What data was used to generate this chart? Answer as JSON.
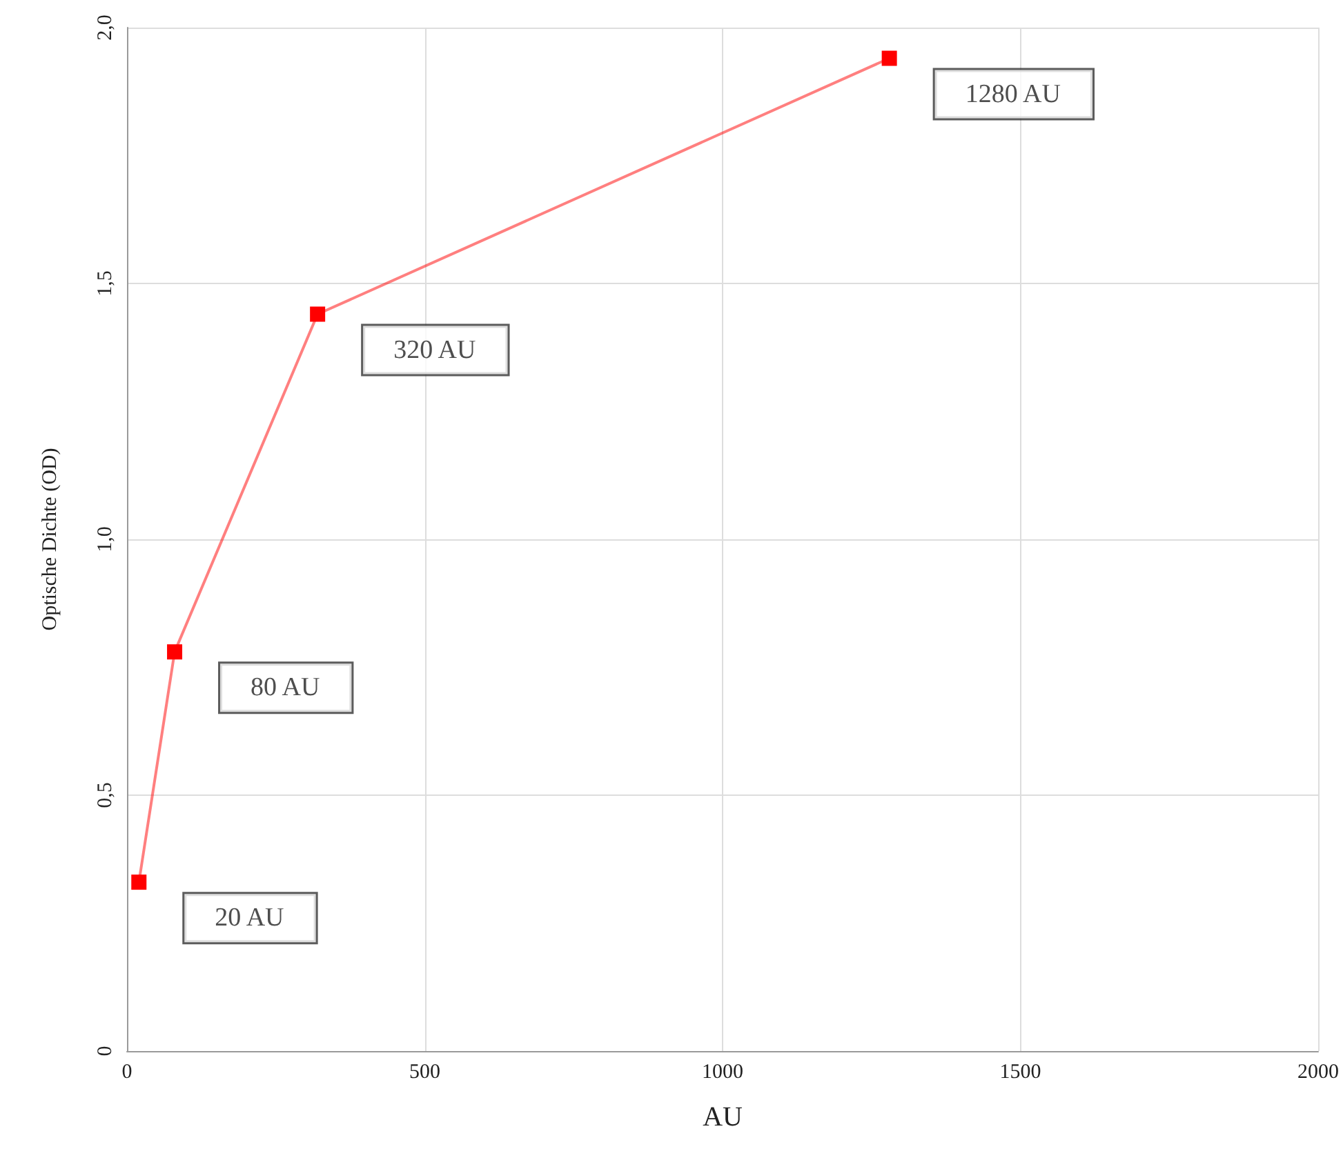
{
  "chart_data": {
    "type": "line",
    "xlabel": "AU",
    "ylabel": "Optische Dichte (OD)",
    "x": [
      20,
      80,
      320,
      1280
    ],
    "series": [
      {
        "color": "#ff0000",
        "values": [
          0.33,
          0.78,
          1.44,
          1.94
        ]
      }
    ],
    "xlim": [
      0,
      2000
    ],
    "xticks": [
      0,
      500,
      1000,
      1500,
      2000
    ],
    "ylim": [
      0,
      2
    ],
    "yticks": [
      {
        "value": 0,
        "label": "0"
      },
      {
        "value": 0.5,
        "label": "0,5"
      },
      {
        "value": 1,
        "label": "1,0"
      },
      {
        "value": 1.5,
        "label": "1,5"
      },
      {
        "value": 2,
        "label": "2,0"
      }
    ],
    "annotations": [
      {
        "text": "20 AU",
        "x": 20,
        "y": 0.33
      },
      {
        "text": "80 AU",
        "x": 80,
        "y": 0.78
      },
      {
        "text": "320 AU",
        "x": 320,
        "y": 1.44
      },
      {
        "text": "1280 AU",
        "x": 1280,
        "y": 1.94
      }
    ],
    "grid": true,
    "marker": "square",
    "line_style": "solid"
  }
}
